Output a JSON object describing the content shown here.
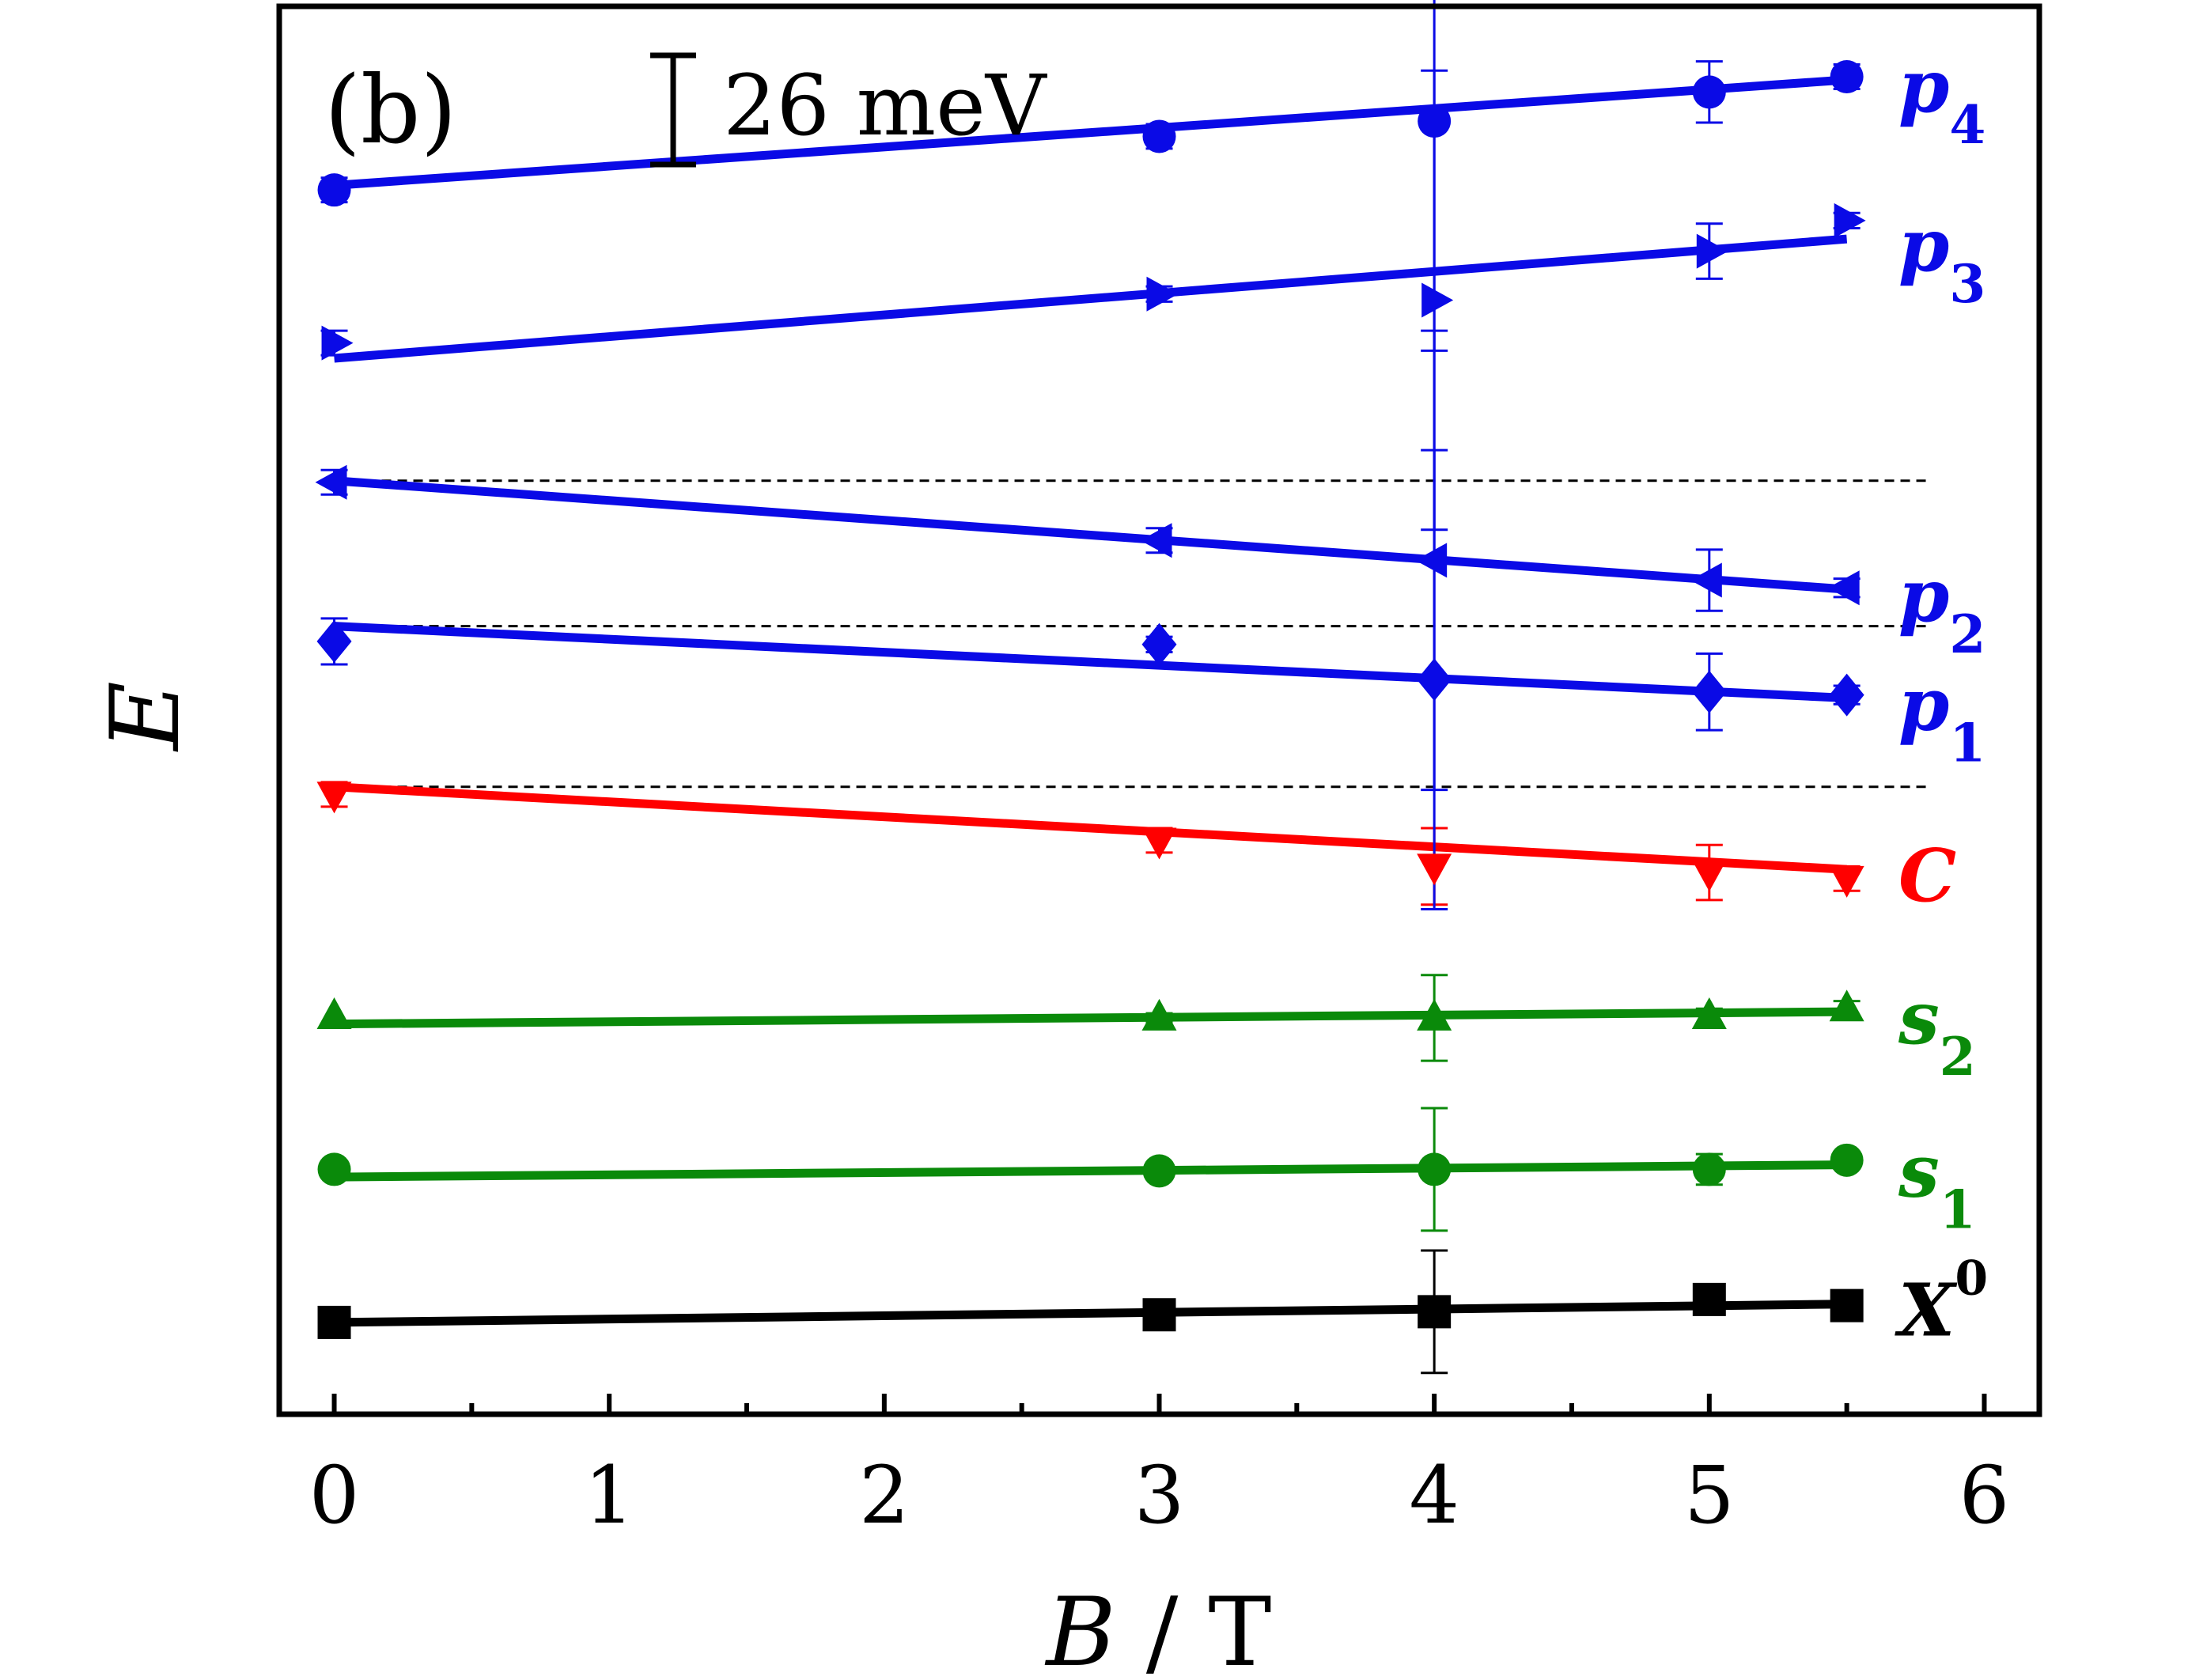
{
  "chart_data": {
    "type": "scatter",
    "panel_label": "(b)",
    "scale_bar_label": "26 meV",
    "xlabel_var": "B",
    "xlabel_unit": "T",
    "ylabel": "E",
    "xlim": [
      -0.2,
      6.2
    ],
    "ylim": [
      -0.6,
      8.6
    ],
    "xticks": [
      "0",
      "1",
      "2",
      "3",
      "4",
      "5",
      "6"
    ],
    "reference_lines_y": [
      5.5,
      4.55,
      3.5
    ],
    "colors": {
      "blue": "#0a0ae6",
      "red": "#ff0000",
      "green": "#0a8a0a",
      "black": "#000000"
    },
    "series": [
      {
        "name": "X",
        "name_sup": "0",
        "color": "#000000",
        "marker": "square",
        "x": [
          0,
          3,
          4,
          5,
          5.5
        ],
        "y": [
          0.0,
          0.05,
          0.07,
          0.15,
          0.11
        ],
        "err": [
          0,
          0.05,
          0.4,
          0.08,
          0.05
        ],
        "fit": [
          [
            0,
            0.0
          ],
          [
            5.5,
            0.12
          ]
        ]
      },
      {
        "name": "s",
        "name_sub": "1",
        "color": "#0a8a0a",
        "marker": "circle",
        "x": [
          0,
          3,
          4,
          5,
          5.5
        ],
        "y": [
          1.0,
          0.99,
          1.0,
          1.0,
          1.06
        ],
        "err": [
          0,
          0.03,
          0.4,
          0.1,
          0.05
        ],
        "fit": [
          [
            0,
            0.95
          ],
          [
            5.5,
            1.03
          ]
        ]
      },
      {
        "name": "s",
        "name_sub": "2",
        "color": "#0a8a0a",
        "marker": "triangle-up",
        "x": [
          0,
          3,
          4,
          5,
          5.5
        ],
        "y": [
          2.0,
          1.99,
          1.99,
          2.0,
          2.05
        ],
        "err": [
          0,
          0.03,
          0.28,
          0.05,
          0.05
        ],
        "fit": [
          [
            0,
            1.95
          ],
          [
            5.5,
            2.03
          ]
        ]
      },
      {
        "name": "C",
        "color": "#ff0000",
        "marker": "triangle-down",
        "x": [
          0,
          3,
          4,
          5,
          5.5
        ],
        "y": [
          3.45,
          3.15,
          2.98,
          2.94,
          2.9
        ],
        "err": [
          0.08,
          0.08,
          0.25,
          0.18,
          0.08
        ],
        "fit": [
          [
            0,
            3.5
          ],
          [
            5.5,
            2.96
          ]
        ]
      },
      {
        "name": "p",
        "name_sub": "1",
        "color": "#0a0ae6",
        "marker": "diamond",
        "x": [
          0,
          3,
          4,
          5,
          5.5
        ],
        "y": [
          4.45,
          4.43,
          4.2,
          4.12,
          4.1
        ],
        "err": [
          0.15,
          0.05,
          1.5,
          0.25,
          0.06
        ],
        "fit": [
          [
            0,
            4.55
          ],
          [
            5.5,
            4.08
          ]
        ]
      },
      {
        "name": "p",
        "name_sub": "2",
        "color": "#0a0ae6",
        "marker": "triangle-left",
        "x": [
          0,
          3,
          4,
          5,
          5.5
        ],
        "y": [
          5.49,
          5.11,
          4.98,
          4.85,
          4.8
        ],
        "err": [
          0.08,
          0.08,
          1.5,
          0.2,
          0.06
        ],
        "fit": [
          [
            0,
            5.5
          ],
          [
            5.5,
            4.79
          ]
        ]
      },
      {
        "name": "p",
        "name_sub": "3",
        "color": "#0a0ae6",
        "marker": "triangle-right",
        "x": [
          0,
          3,
          4,
          5,
          5.5
        ],
        "y": [
          6.4,
          6.72,
          6.68,
          7.0,
          7.2
        ],
        "err": [
          0.08,
          0.05,
          1.5,
          0.18,
          0.05
        ],
        "fit": [
          [
            0,
            6.3
          ],
          [
            5.5,
            7.08
          ]
        ]
      },
      {
        "name": "p",
        "name_sub": "4",
        "color": "#0a0ae6",
        "marker": "circle",
        "x": [
          0,
          3,
          4,
          5,
          5.5
        ],
        "y": [
          7.4,
          7.75,
          7.85,
          8.04,
          8.14
        ],
        "err": [
          0.08,
          0.08,
          1.5,
          0.2,
          0.08
        ],
        "fit": [
          [
            0,
            7.43
          ],
          [
            5.5,
            8.12
          ]
        ]
      }
    ]
  }
}
